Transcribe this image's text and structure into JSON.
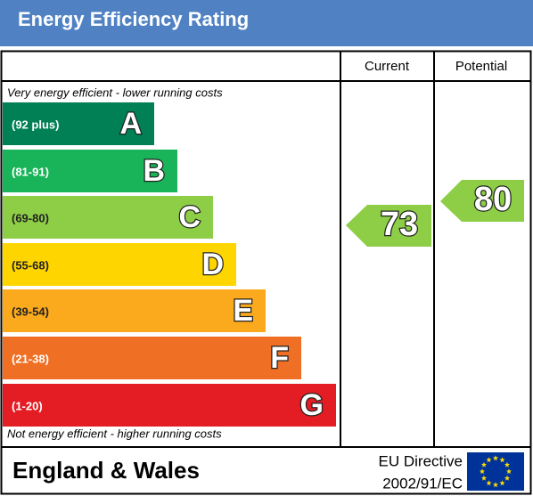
{
  "header": {
    "title": "Energy Efficiency Rating"
  },
  "columns": {
    "current": "Current",
    "potential": "Potential"
  },
  "top_note": "Very energy efficient - lower running costs",
  "bottom_note": "Not energy efficient - higher running costs",
  "bands": [
    {
      "range": "(92 plus)",
      "letter": "A",
      "color": "#008054"
    },
    {
      "range": "(81-91)",
      "letter": "B",
      "color": "#19b459"
    },
    {
      "range": "(69-80)",
      "letter": "C",
      "color": "#8dce46"
    },
    {
      "range": "(55-68)",
      "letter": "D",
      "color": "#ffd500"
    },
    {
      "range": "(39-54)",
      "letter": "E",
      "color": "#fcaa1d"
    },
    {
      "range": "(21-38)",
      "letter": "F",
      "color": "#ef6f25"
    },
    {
      "range": "(1-20)",
      "letter": "G",
      "color": "#e31d23"
    }
  ],
  "ratings": {
    "current": 73,
    "potential": 80,
    "color": "#8dce46"
  },
  "footer": {
    "region": "England & Wales",
    "directive_line1": "EU Directive",
    "directive_line2": "2002/91/EC"
  }
}
